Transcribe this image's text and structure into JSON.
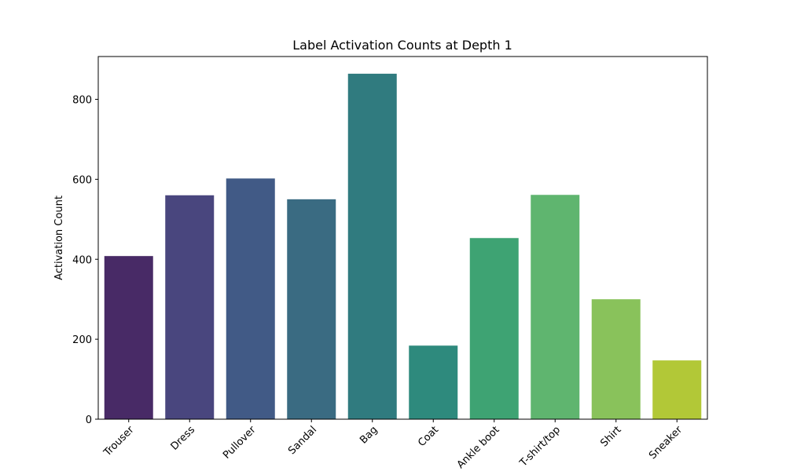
{
  "chart_data": {
    "type": "bar",
    "title": "Label Activation Counts at Depth 1",
    "xlabel": "",
    "ylabel": "Activation Count",
    "categories": [
      "Trouser",
      "Dress",
      "Pullover",
      "Sandal",
      "Bag",
      "Coat",
      "Ankle boot",
      "T-shirt/top",
      "Shirt",
      "Sneaker"
    ],
    "values": [
      408,
      560,
      602,
      550,
      864,
      184,
      453,
      561,
      300,
      147
    ],
    "colors": [
      "#482a66",
      "#49467e",
      "#415a86",
      "#3a6b82",
      "#307b7f",
      "#2e8a7d",
      "#3ea373",
      "#5fb56f",
      "#89c25b",
      "#b2c837"
    ],
    "ylim": [
      0,
      907
    ],
    "yticks": [
      0,
      200,
      400,
      600,
      800
    ],
    "grid": false,
    "legend": "none"
  }
}
